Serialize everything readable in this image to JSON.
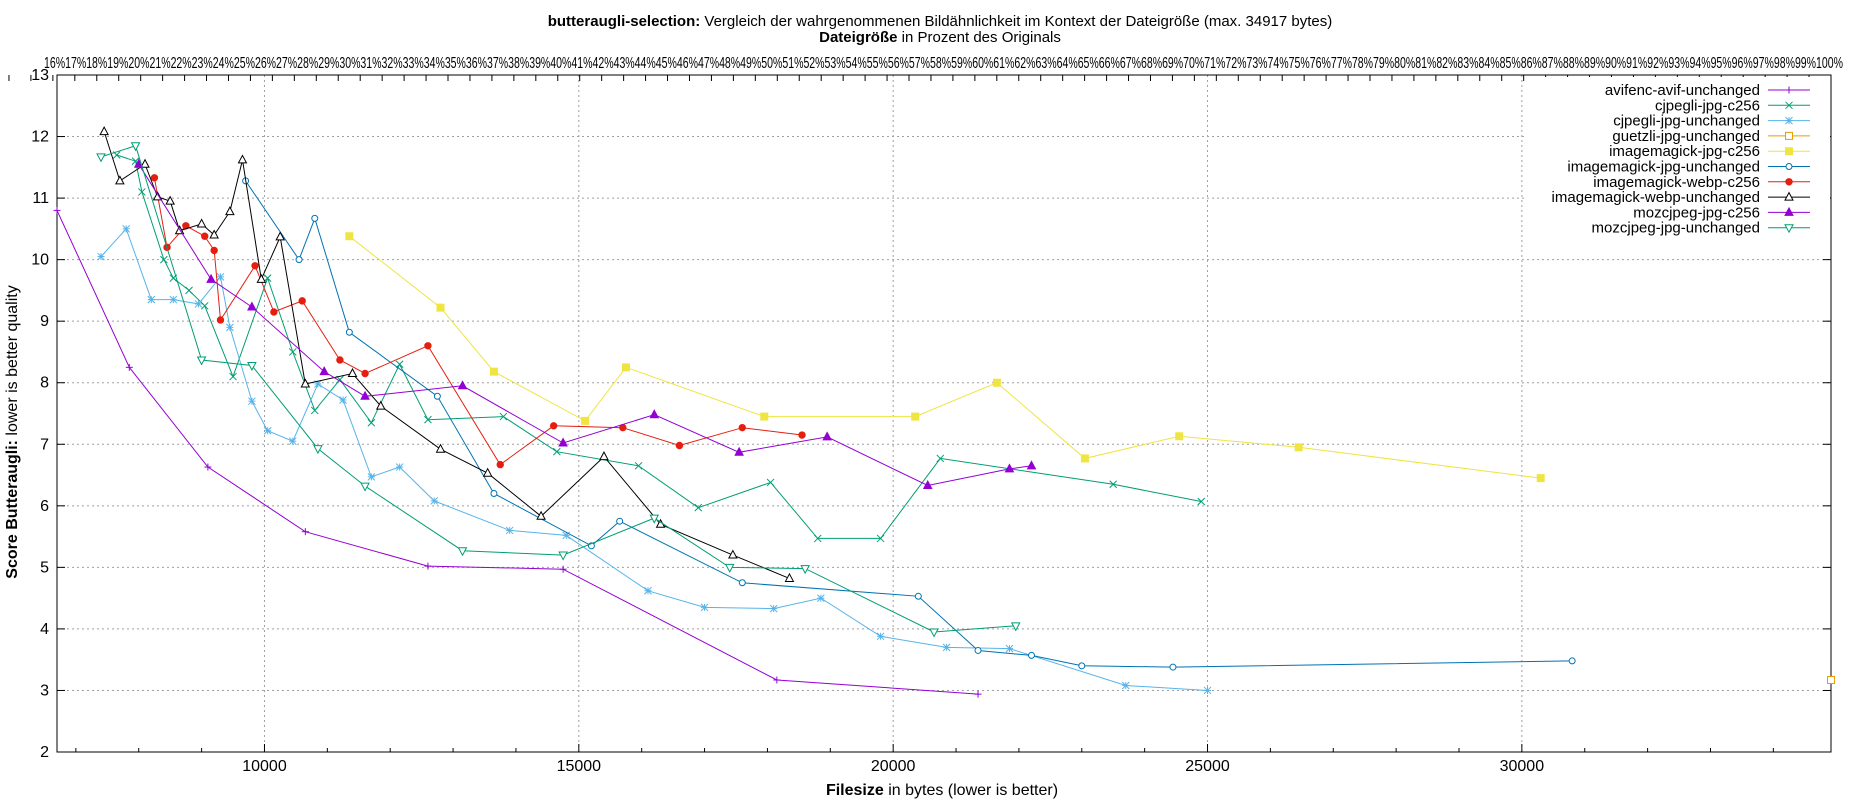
{
  "chart_data": {
    "type": "line",
    "title_bold": "butteraugli-selection:",
    "title_rest": " Vergleich der wahrgenommenen Bildähnlichkeit im Kontext der Dateigröße (max. 34917 bytes)",
    "subtitle_bold": "Dateigröße",
    "subtitle_rest": " in Prozent des Originals",
    "xlabel_bold": "Filesize",
    "xlabel_rest": " in bytes (lower is better)",
    "ylabel_bold": "Score Butteraugli:",
    "ylabel_rest": " lower is better quality",
    "xlim": [
      6700,
      34917
    ],
    "ylim": [
      2,
      13
    ],
    "x_ticks": [
      10000,
      15000,
      20000,
      25000,
      30000
    ],
    "y_ticks": [
      2,
      3,
      4,
      5,
      6,
      7,
      8,
      9,
      10,
      11,
      12,
      13
    ],
    "x2_tick_labels_text": "16%17%18%19%20%21%22%23%24%25%26%27%28%29%30%31%32%33%34%35%36%37%38%39%40%41%42%43%44%45%46%47%48%49%50%51%52%53%54%55%56%57%58%59%60%61%62%63%64%65%66%67%68%69%70%71%72%73%74%75%76%77%78%79%80%81%82%83%84%85%86%87%88%89%90%91%92%93%94%95%96%97%98%99%100%",
    "grid": true,
    "legend_position": "top-right",
    "series": [
      {
        "name": "avifenc-avif-unchanged",
        "color": "#9400d3",
        "marker": "plus",
        "points": [
          [
            6700,
            10.8
          ],
          [
            7850,
            8.25
          ],
          [
            9100,
            6.63
          ],
          [
            10650,
            5.58
          ],
          [
            12600,
            5.02
          ],
          [
            14750,
            4.97
          ],
          [
            18150,
            3.17
          ],
          [
            21350,
            2.94
          ]
        ]
      },
      {
        "name": "cjpegli-jpg-c256",
        "color": "#009e73",
        "marker": "x",
        "points": [
          [
            7650,
            11.7
          ],
          [
            7950,
            11.6
          ],
          [
            8050,
            11.1
          ],
          [
            8400,
            10.0
          ],
          [
            8550,
            9.7
          ],
          [
            8800,
            9.5
          ],
          [
            9050,
            9.25
          ],
          [
            9500,
            8.1
          ],
          [
            10050,
            9.7
          ],
          [
            10450,
            8.5
          ],
          [
            10800,
            7.55
          ],
          [
            11200,
            8.05
          ],
          [
            11700,
            7.35
          ],
          [
            12150,
            8.3
          ],
          [
            12600,
            7.4
          ],
          [
            13800,
            7.45
          ],
          [
            14650,
            6.88
          ],
          [
            15950,
            6.65
          ],
          [
            16900,
            5.97
          ],
          [
            18050,
            6.38
          ],
          [
            18800,
            5.47
          ],
          [
            19800,
            5.47
          ],
          [
            20750,
            6.77
          ],
          [
            23500,
            6.35
          ],
          [
            24900,
            6.07
          ]
        ]
      },
      {
        "name": "cjpegli-jpg-unchanged",
        "color": "#56b4e9",
        "marker": "star",
        "points": [
          [
            7400,
            10.05
          ],
          [
            7800,
            10.5
          ],
          [
            8200,
            9.35
          ],
          [
            8550,
            9.35
          ],
          [
            8950,
            9.28
          ],
          [
            9300,
            9.72
          ],
          [
            9450,
            8.9
          ],
          [
            9800,
            7.7
          ],
          [
            10050,
            7.22
          ],
          [
            10450,
            7.05
          ],
          [
            10850,
            7.98
          ],
          [
            11250,
            7.72
          ],
          [
            11700,
            6.47
          ],
          [
            12150,
            6.63
          ],
          [
            12700,
            6.08
          ],
          [
            13900,
            5.6
          ],
          [
            14800,
            5.52
          ],
          [
            16100,
            4.62
          ],
          [
            17000,
            4.35
          ],
          [
            18100,
            4.33
          ],
          [
            18850,
            4.5
          ],
          [
            19800,
            3.88
          ],
          [
            20850,
            3.7
          ],
          [
            21850,
            3.68
          ],
          [
            23700,
            3.08
          ],
          [
            25000,
            3.0
          ]
        ]
      },
      {
        "name": "guetzli-jpg-unchanged",
        "color": "#e69f00",
        "marker": "square-open",
        "points": [
          [
            34917,
            3.17
          ]
        ]
      },
      {
        "name": "imagemagick-jpg-c256",
        "color": "#f0e442",
        "marker": "square",
        "points": [
          [
            11350,
            10.38
          ],
          [
            12800,
            9.22
          ],
          [
            13650,
            8.18
          ],
          [
            15100,
            7.38
          ],
          [
            15750,
            8.25
          ],
          [
            17950,
            7.45
          ],
          [
            20350,
            7.45
          ],
          [
            21650,
            8.0
          ],
          [
            23050,
            6.77
          ],
          [
            24550,
            7.13
          ],
          [
            26450,
            6.95
          ],
          [
            30300,
            6.45
          ]
        ]
      },
      {
        "name": "imagemagick-jpg-unchanged",
        "color": "#0072b2",
        "marker": "circle-open",
        "points": [
          [
            9700,
            11.28
          ],
          [
            10550,
            10.0
          ],
          [
            10800,
            10.67
          ],
          [
            11350,
            8.82
          ],
          [
            12750,
            7.78
          ],
          [
            13650,
            6.2
          ],
          [
            15200,
            5.35
          ],
          [
            15650,
            5.75
          ],
          [
            17600,
            4.75
          ],
          [
            20400,
            4.53
          ],
          [
            21350,
            3.65
          ],
          [
            22200,
            3.57
          ],
          [
            23000,
            3.4
          ],
          [
            24450,
            3.38
          ],
          [
            30800,
            3.48
          ]
        ]
      },
      {
        "name": "imagemagick-webp-c256",
        "color": "#e51e10",
        "marker": "circle",
        "points": [
          [
            8250,
            11.33
          ],
          [
            8450,
            10.2
          ],
          [
            8750,
            10.55
          ],
          [
            9050,
            10.38
          ],
          [
            9200,
            10.15
          ],
          [
            9300,
            9.02
          ],
          [
            9850,
            9.9
          ],
          [
            10150,
            9.15
          ],
          [
            10600,
            9.33
          ],
          [
            11200,
            8.37
          ],
          [
            11600,
            8.15
          ],
          [
            12600,
            8.6
          ],
          [
            13750,
            6.67
          ],
          [
            14600,
            7.3
          ],
          [
            15700,
            7.27
          ],
          [
            16600,
            6.98
          ],
          [
            17600,
            7.27
          ],
          [
            18550,
            7.15
          ]
        ]
      },
      {
        "name": "imagemagick-webp-unchanged",
        "color": "#000000",
        "marker": "triangle-open",
        "points": [
          [
            7450,
            12.08
          ],
          [
            7700,
            11.28
          ],
          [
            8100,
            11.55
          ],
          [
            8300,
            11.02
          ],
          [
            8500,
            10.95
          ],
          [
            8650,
            10.47
          ],
          [
            9000,
            10.58
          ],
          [
            9200,
            10.4
          ],
          [
            9450,
            10.78
          ],
          [
            9650,
            11.62
          ],
          [
            9950,
            9.68
          ],
          [
            10250,
            10.37
          ],
          [
            10650,
            7.98
          ],
          [
            11400,
            8.15
          ],
          [
            11850,
            7.62
          ],
          [
            12800,
            6.92
          ],
          [
            13550,
            6.53
          ],
          [
            14400,
            5.83
          ],
          [
            15400,
            6.8
          ],
          [
            16300,
            5.7
          ],
          [
            17450,
            5.2
          ],
          [
            18350,
            4.82
          ]
        ]
      },
      {
        "name": "mozcjpeg-jpg-c256",
        "color": "#9400d3",
        "marker": "triangle",
        "points": [
          [
            8000,
            11.55
          ],
          [
            9150,
            9.68
          ],
          [
            9800,
            9.23
          ],
          [
            10950,
            8.18
          ],
          [
            11600,
            7.78
          ],
          [
            13150,
            7.95
          ],
          [
            14750,
            7.02
          ],
          [
            16200,
            7.48
          ],
          [
            17550,
            6.87
          ],
          [
            18950,
            7.12
          ],
          [
            20550,
            6.33
          ],
          [
            21850,
            6.6
          ],
          [
            22200,
            6.65
          ]
        ]
      },
      {
        "name": "mozcjpeg-jpg-unchanged",
        "color": "#009e73",
        "marker": "triangle-down-open",
        "points": [
          [
            7400,
            11.67
          ],
          [
            7950,
            11.85
          ],
          [
            9000,
            8.37
          ],
          [
            9800,
            8.28
          ],
          [
            10850,
            6.93
          ],
          [
            11600,
            6.32
          ],
          [
            13150,
            5.27
          ],
          [
            14750,
            5.2
          ],
          [
            16200,
            5.8
          ],
          [
            17400,
            5.0
          ],
          [
            18600,
            4.98
          ],
          [
            20650,
            3.95
          ],
          [
            21950,
            4.05
          ]
        ]
      }
    ]
  }
}
